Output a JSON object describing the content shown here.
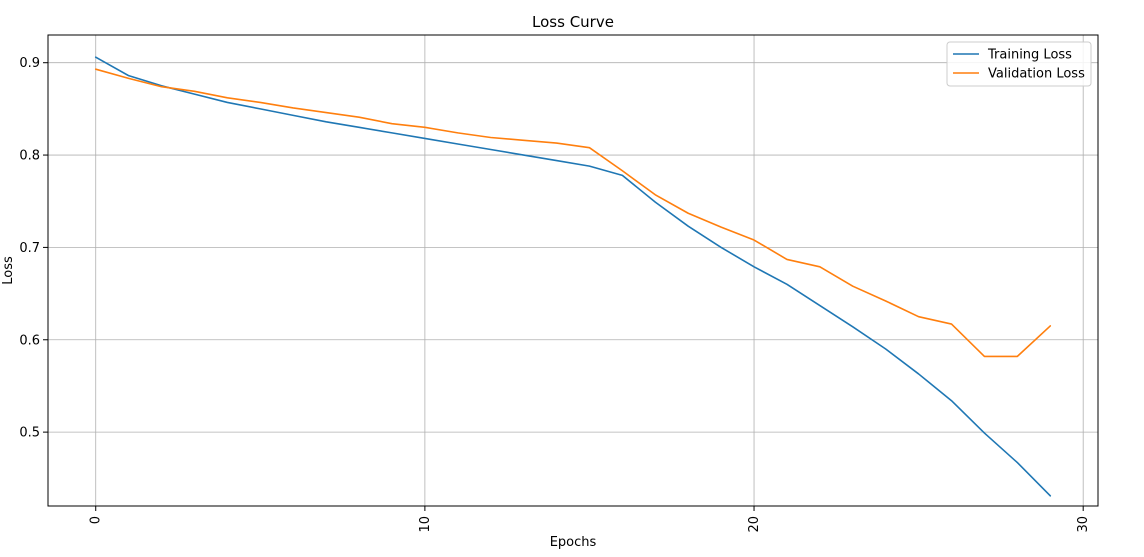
{
  "chart_data": {
    "type": "line",
    "title": "Loss Curve",
    "xlabel": "Epochs",
    "ylabel": "Loss",
    "xlim": [
      -1.45,
      30.45
    ],
    "ylim": [
      0.42,
      0.93
    ],
    "xticks": [
      0,
      10,
      20,
      30
    ],
    "yticks": [
      0.5,
      0.6,
      0.7,
      0.8,
      0.9
    ],
    "xtick_labels": [
      "0",
      "10",
      "20",
      "30"
    ],
    "ytick_labels": [
      "0.5",
      "0.6",
      "0.7",
      "0.8",
      "0.9"
    ],
    "grid": true,
    "legend_position": "top-right",
    "x": [
      0,
      1,
      2,
      3,
      4,
      5,
      6,
      7,
      8,
      9,
      10,
      11,
      12,
      13,
      14,
      15,
      16,
      17,
      18,
      19,
      20,
      21,
      22,
      23,
      24,
      25,
      26,
      27,
      28,
      29
    ],
    "series": [
      {
        "name": "Training Loss",
        "color": "#1f77b4",
        "values": [
          0.906,
          0.886,
          0.875,
          0.866,
          0.857,
          0.85,
          0.843,
          0.836,
          0.83,
          0.824,
          0.818,
          0.812,
          0.806,
          0.8,
          0.794,
          0.788,
          0.778,
          0.749,
          0.723,
          0.7,
          0.679,
          0.66,
          0.637,
          0.614,
          0.59,
          0.563,
          0.534,
          0.499,
          0.467,
          0.431
        ]
      },
      {
        "name": "Validation Loss",
        "color": "#ff7f0e",
        "values": [
          0.893,
          0.883,
          0.874,
          0.869,
          0.862,
          0.857,
          0.851,
          0.846,
          0.841,
          0.834,
          0.83,
          0.824,
          0.819,
          0.816,
          0.813,
          0.808,
          0.783,
          0.757,
          0.737,
          0.722,
          0.708,
          0.687,
          0.679,
          0.658,
          0.642,
          0.625,
          0.617,
          0.582,
          0.582,
          0.615
        ]
      }
    ]
  }
}
